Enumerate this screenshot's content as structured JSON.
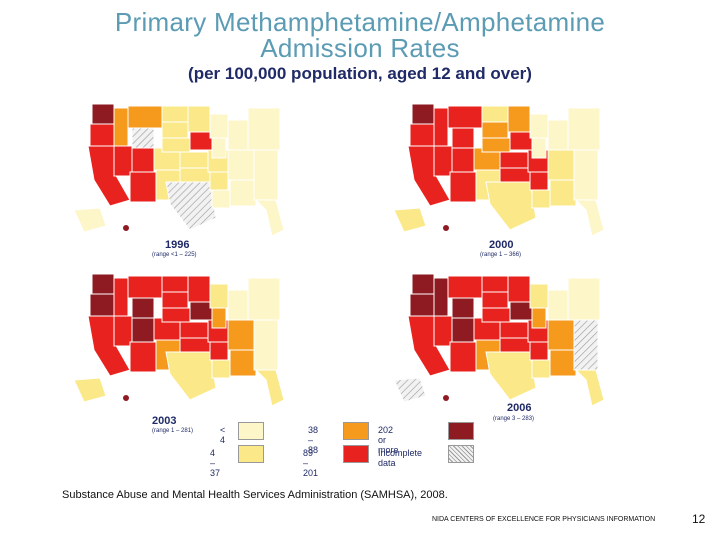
{
  "title_line1": "Primary Methamphetamine/Amphetamine",
  "title_line2": "Admission Rates",
  "subtitle": "(per 100,000 population, aged 12 and over)",
  "colors": {
    "lt4": "#fdf6c8",
    "r4_37": "#fbe888",
    "r38_88": "#f59a1c",
    "r89_201": "#e8221e",
    "r202": "#8e1b22",
    "incomplete": "#e8e8e8"
  },
  "maps": [
    {
      "year": "1996",
      "range": "(range <1 – 225)"
    },
    {
      "year": "2000",
      "range": "(range 1 – 366)"
    },
    {
      "year": "2003",
      "range": "(range 1 – 281)"
    },
    {
      "year": "2006",
      "range": "(range 3 – 283)"
    }
  ],
  "legend": [
    {
      "label": "< 4",
      "color": "lt4"
    },
    {
      "label": "4 – 37",
      "color": "r4_37"
    },
    {
      "label": "38 – 88",
      "color": "r38_88"
    },
    {
      "label": "89 – 201",
      "color": "r89_201"
    },
    {
      "label": "202 or more",
      "color": "r202"
    },
    {
      "label": "Incomplete data",
      "color": "incomplete"
    }
  ],
  "source": "Substance Abuse and Mental Health Services Administration (SAMHSA), 2008.",
  "footer_org": "NIDA CENTERS OF EXCELLENCE FOR PHYSICIANS INFORMATION",
  "footer_page": "12"
}
